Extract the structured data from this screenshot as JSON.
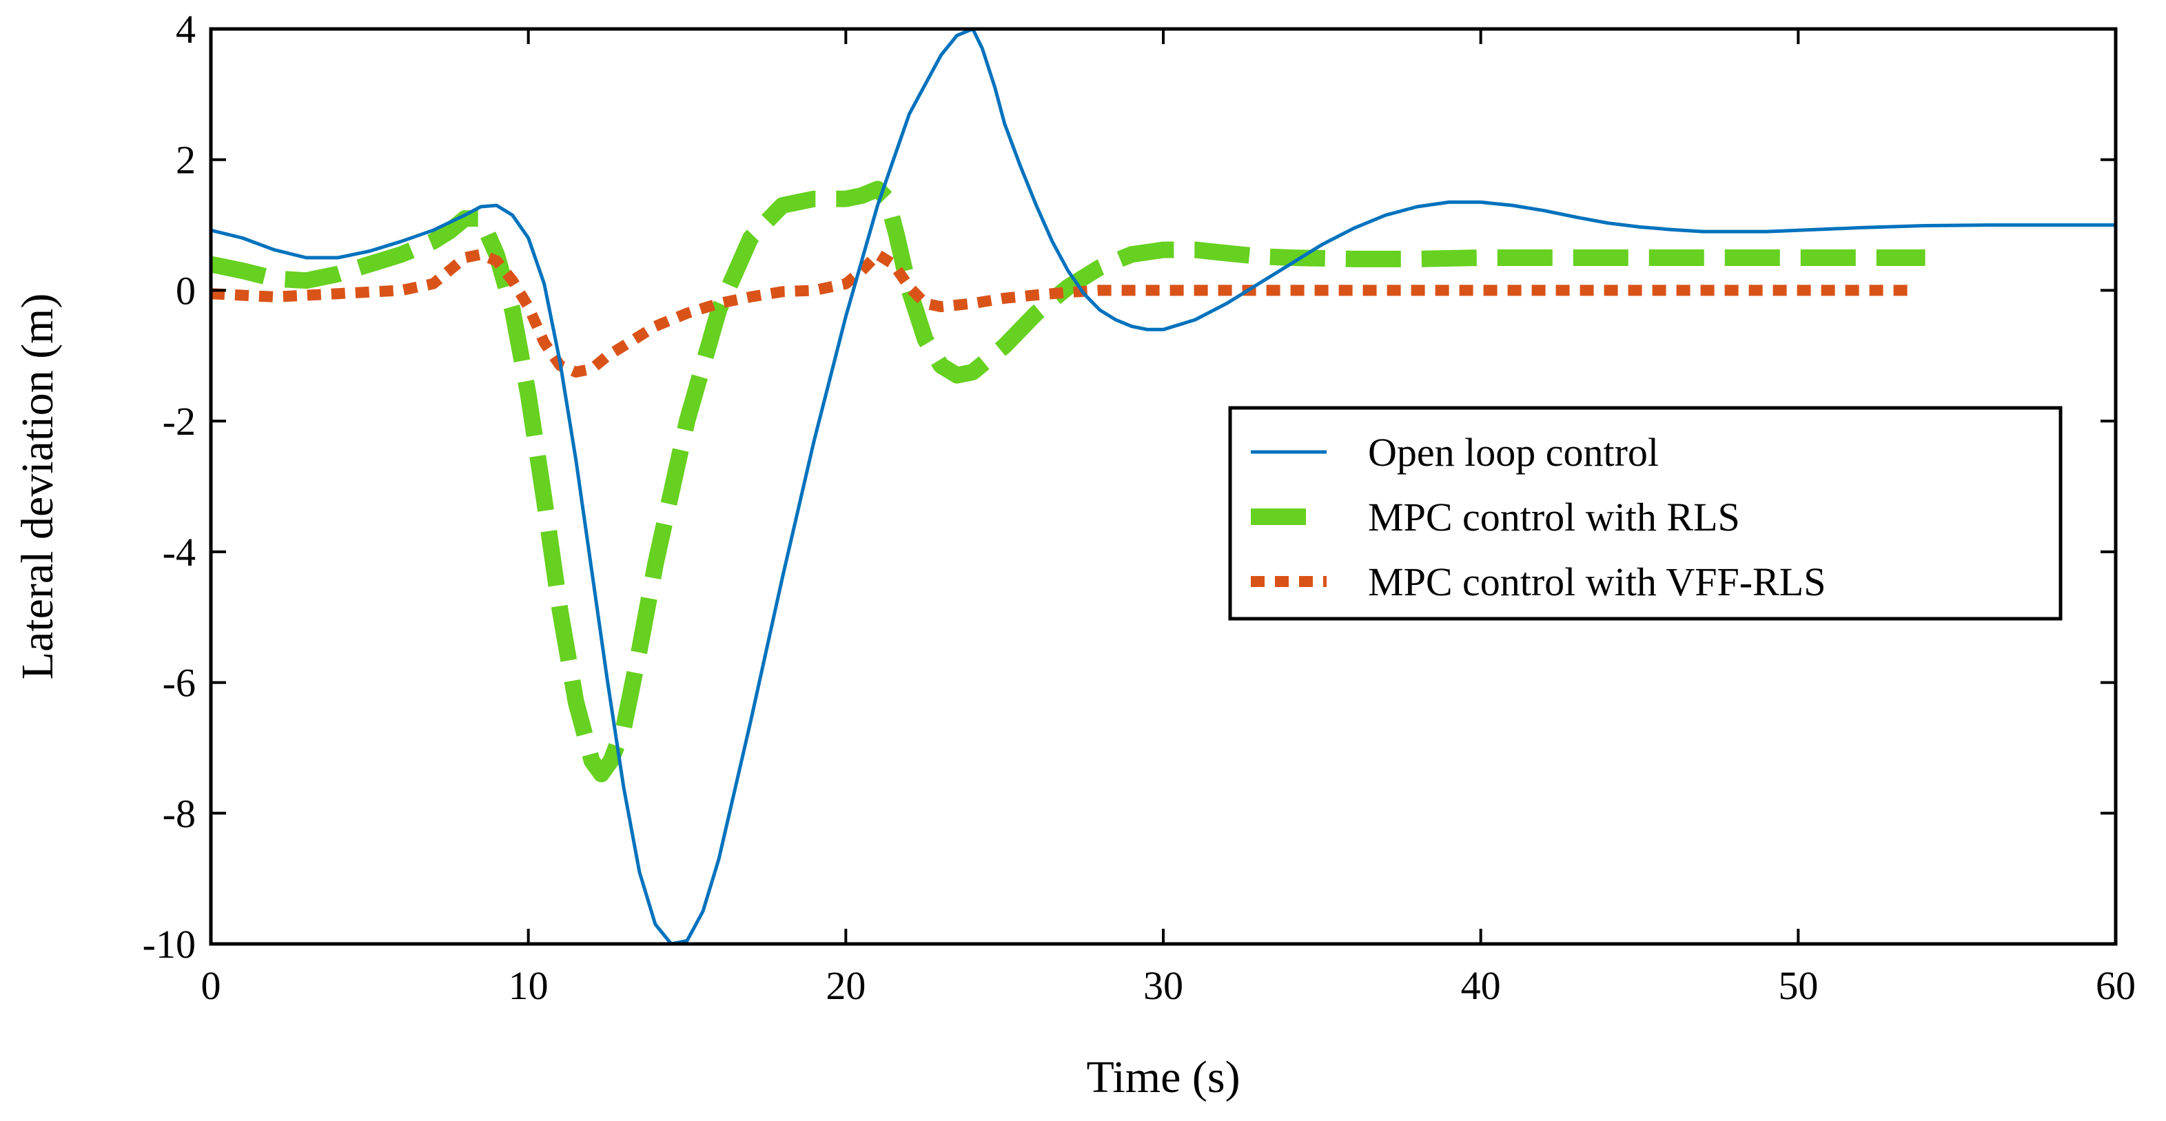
{
  "chart_data": {
    "type": "line",
    "title": "",
    "xlabel": "Time (s)",
    "ylabel": "Lateral deviation (m)",
    "xlim": [
      0,
      60
    ],
    "ylim": [
      -10,
      4
    ],
    "xticks": [
      0,
      10,
      20,
      30,
      40,
      50,
      60
    ],
    "yticks": [
      -10,
      -8,
      -6,
      -4,
      -2,
      0,
      2,
      4
    ],
    "xtick_labels": [
      "0",
      "10",
      "20",
      "30",
      "40",
      "50",
      "60"
    ],
    "ytick_labels": [
      "-10",
      "-8",
      "-6",
      "-4",
      "-2",
      "0",
      "2",
      "4"
    ],
    "grid": false,
    "legend_position": "center-right",
    "series": [
      {
        "name": "Open loop control",
        "color": "#0072BD",
        "style": "solid",
        "x": [
          0,
          1,
          2,
          3,
          4,
          5,
          6,
          7,
          8,
          8.5,
          9,
          9.5,
          10,
          10.5,
          11,
          11.5,
          12,
          12.5,
          13,
          13.5,
          14,
          14.5,
          15,
          15.5,
          16,
          17,
          18,
          19,
          20,
          21,
          22,
          23,
          23.5,
          24,
          24.3,
          24.7,
          25,
          25.5,
          26,
          26.5,
          27,
          27.5,
          28,
          28.5,
          29,
          29.5,
          30,
          31,
          32,
          33,
          34,
          35,
          36,
          37,
          38,
          39,
          40,
          41,
          42,
          43,
          44,
          45,
          46,
          47,
          48,
          49,
          50,
          52,
          54,
          56,
          58,
          60
        ],
        "values": [
          0.92,
          0.8,
          0.62,
          0.5,
          0.5,
          0.6,
          0.75,
          0.92,
          1.15,
          1.28,
          1.3,
          1.15,
          0.8,
          0.1,
          -1.1,
          -2.6,
          -4.3,
          -6.0,
          -7.6,
          -8.9,
          -9.7,
          -10.0,
          -9.95,
          -9.5,
          -8.7,
          -6.6,
          -4.4,
          -2.3,
          -0.4,
          1.3,
          2.7,
          3.6,
          3.9,
          4.0,
          3.7,
          3.1,
          2.55,
          1.9,
          1.3,
          0.75,
          0.3,
          -0.05,
          -0.3,
          -0.45,
          -0.55,
          -0.6,
          -0.6,
          -0.45,
          -0.2,
          0.1,
          0.4,
          0.7,
          0.95,
          1.15,
          1.28,
          1.35,
          1.35,
          1.3,
          1.22,
          1.12,
          1.03,
          0.97,
          0.93,
          0.9,
          0.9,
          0.9,
          0.92,
          0.96,
          0.99,
          1.0,
          1.0,
          1.0
        ]
      },
      {
        "name": "MPC control with RLS",
        "color": "#66D120",
        "style": "dashed",
        "x": [
          0,
          1,
          2,
          3,
          4,
          5,
          6,
          7,
          7.5,
          8,
          8.5,
          9,
          9.5,
          10,
          10.5,
          11,
          11.5,
          12,
          12.3,
          12.6,
          13,
          13.5,
          14,
          15,
          16,
          17,
          18,
          19,
          20,
          20.5,
          21,
          21.3,
          21.6,
          22,
          22.5,
          23,
          23.5,
          24,
          24.5,
          25,
          25.5,
          26,
          27,
          28,
          29,
          30,
          31,
          32,
          33,
          34,
          36,
          38,
          40,
          42,
          44,
          46,
          48,
          50,
          52,
          54
        ],
        "values": [
          0.4,
          0.3,
          0.18,
          0.15,
          0.25,
          0.4,
          0.55,
          0.75,
          0.9,
          1.1,
          1.1,
          0.55,
          -0.3,
          -1.6,
          -3.2,
          -4.9,
          -6.3,
          -7.2,
          -7.4,
          -7.2,
          -6.7,
          -5.5,
          -4.2,
          -2.0,
          -0.3,
          0.8,
          1.3,
          1.4,
          1.4,
          1.45,
          1.55,
          1.4,
          0.85,
          0.0,
          -0.75,
          -1.15,
          -1.3,
          -1.25,
          -1.05,
          -0.85,
          -0.6,
          -0.35,
          0.05,
          0.35,
          0.55,
          0.62,
          0.62,
          0.57,
          0.52,
          0.5,
          0.48,
          0.48,
          0.5,
          0.5,
          0.5,
          0.5,
          0.5,
          0.5,
          0.5,
          0.5
        ]
      },
      {
        "name": "MPC control with VFF-RLS",
        "color": "#D95319",
        "style": "dotted",
        "x": [
          0,
          2,
          4,
          6,
          7,
          7.5,
          8,
          8.5,
          9,
          9.5,
          10,
          10.5,
          11,
          11.5,
          12,
          12.5,
          13,
          13.5,
          14,
          15,
          16,
          17,
          18,
          19,
          20,
          20.5,
          21,
          21.5,
          22,
          22.5,
          23,
          24,
          25,
          26,
          27,
          28,
          30,
          35,
          40,
          45,
          50,
          53.5
        ],
        "values": [
          -0.05,
          -0.1,
          -0.05,
          0.0,
          0.1,
          0.3,
          0.5,
          0.55,
          0.45,
          0.15,
          -0.25,
          -0.8,
          -1.15,
          -1.25,
          -1.2,
          -1.0,
          -0.85,
          -0.7,
          -0.55,
          -0.35,
          -0.2,
          -0.1,
          -0.02,
          0.0,
          0.1,
          0.3,
          0.55,
          0.4,
          0.05,
          -0.2,
          -0.25,
          -0.2,
          -0.12,
          -0.07,
          -0.03,
          0.0,
          0.0,
          0.0,
          0.0,
          0.0,
          0.0,
          0.0
        ]
      }
    ]
  }
}
